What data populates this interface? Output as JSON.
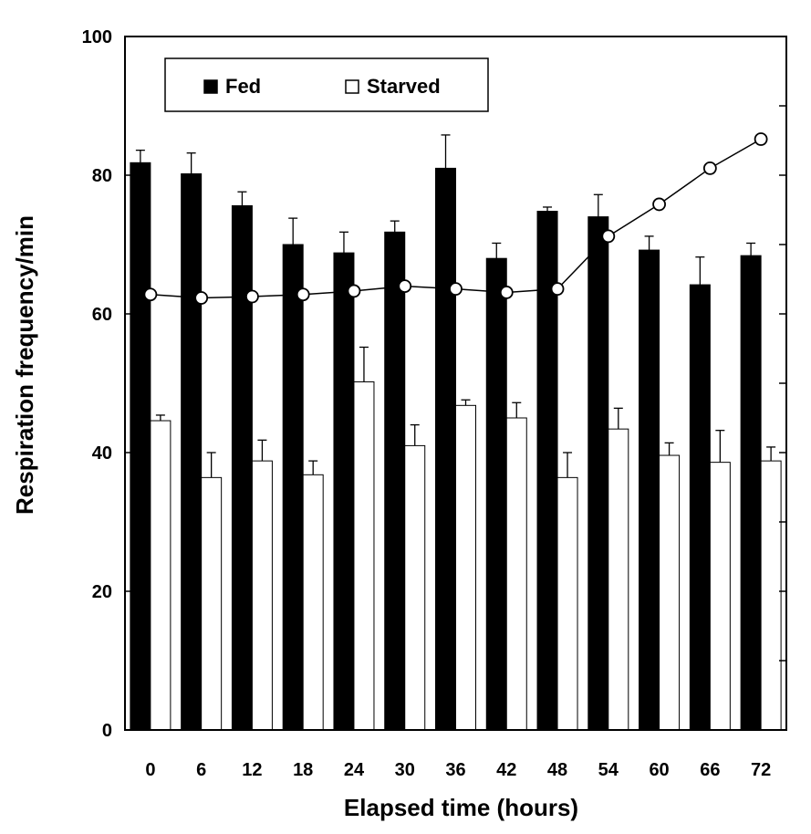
{
  "chart_data": {
    "type": "bar",
    "categories": [
      "0",
      "6",
      "12",
      "18",
      "24",
      "30",
      "36",
      "42",
      "48",
      "54",
      "60",
      "66",
      "72"
    ],
    "series": [
      {
        "name": "Fed",
        "color": "#000000",
        "values": [
          81.8,
          80.2,
          75.6,
          70.0,
          68.8,
          71.8,
          81.0,
          68.0,
          74.8,
          74.0,
          69.2,
          64.2,
          68.4
        ],
        "errors": [
          1.8,
          3.0,
          2.0,
          3.8,
          3.0,
          1.6,
          4.8,
          2.2,
          0.6,
          3.2,
          2.0,
          4.0,
          1.8
        ]
      },
      {
        "name": "Starved",
        "color": "#ffffff",
        "values": [
          44.6,
          36.4,
          38.8,
          36.8,
          50.2,
          41.0,
          46.8,
          45.0,
          36.4,
          43.4,
          39.6,
          38.6,
          38.8
        ],
        "errors": [
          0.8,
          3.6,
          3.0,
          2.0,
          5.0,
          3.0,
          0.8,
          2.2,
          3.6,
          3.0,
          1.8,
          4.6,
          2.0
        ]
      }
    ],
    "line_series": {
      "marker": "open-circle",
      "values": [
        62.8,
        62.3,
        62.5,
        62.8,
        63.3,
        64.0,
        63.6,
        63.1,
        63.6,
        71.2,
        75.8,
        81.0,
        85.2
      ]
    },
    "xlabel": "Elapsed time (hours)",
    "ylabel": "Respiration frequency/min",
    "ylim": [
      0,
      100
    ],
    "yticks": [
      0,
      20,
      40,
      60,
      80,
      100
    ],
    "right_axis_ticks": 10,
    "grid": false,
    "legend_position": "top-left"
  }
}
